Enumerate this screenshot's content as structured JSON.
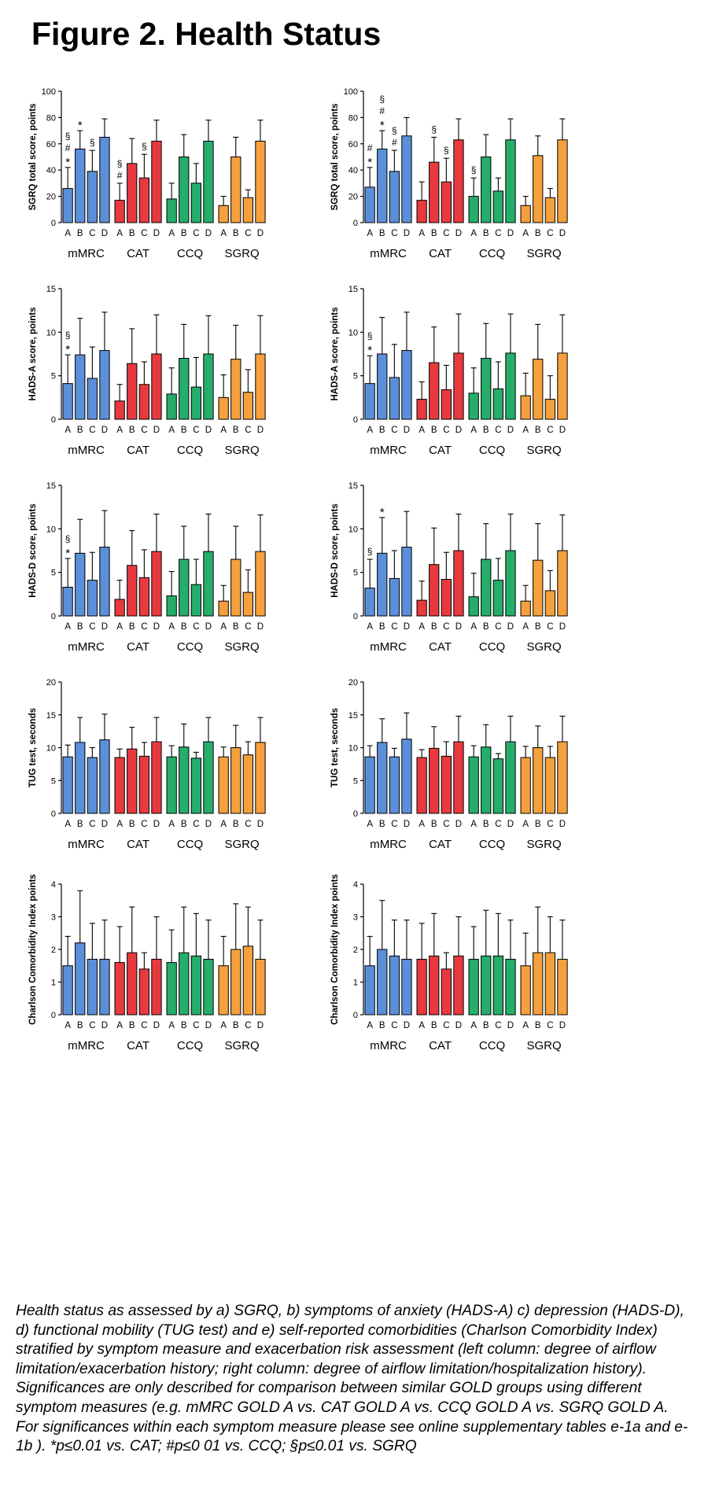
{
  "page": {
    "title": "Figure 2. Health Status",
    "caption": "Health status as assessed by a) SGRQ, b) symptoms of anxiety (HADS-A) c) depression (HADS-D), d) functional mobility (TUG test) and e) self-reported comorbidities (Charlson Comorbidity Index) stratified by symptom measure and exacerbation risk assessment (left column: degree of airflow limitation/exacerbation history; right column: degree of airflow limitation/hospitalization history). Significances are only described for comparison between similar GOLD groups using different symptom measures (e.g. mMRC GOLD A vs. CAT GOLD A vs. CCQ GOLD A vs. SGRQ GOLD A. For significances within each symptom measure please see online supplementary tables e-1a and e-1b ).  *p≤0.01 vs. CAT; #p≤0 01 vs. CCQ; §p≤0.01 vs. SGRQ"
  },
  "colors": {
    "mMRC": "#5b8fd8",
    "CAT": "#e8393f",
    "CCQ": "#25ad6a",
    "SGRQ": "#f5a03c"
  },
  "chart_data": [
    {
      "type": "bar",
      "column": "left",
      "ylabel": "SGRQ total score, points",
      "ylim": [
        0,
        100
      ],
      "yticks": [
        "0",
        "20",
        "40",
        "60",
        "80",
        "100"
      ],
      "groups": [
        "mMRC",
        "CAT",
        "CCQ",
        "SGRQ"
      ],
      "categories": [
        "A",
        "B",
        "C",
        "D"
      ],
      "values": [
        [
          26,
          56,
          39,
          65
        ],
        [
          17,
          45,
          34,
          62
        ],
        [
          18,
          50,
          30,
          62
        ],
        [
          13,
          50,
          19,
          62
        ]
      ],
      "errors": [
        [
          42,
          70,
          55,
          79
        ],
        [
          30,
          64,
          52,
          78
        ],
        [
          30,
          67,
          45,
          78
        ],
        [
          20,
          65,
          25,
          78
        ]
      ],
      "annotations": [
        [
          [
            "§",
            "#",
            "*"
          ],
          [
            "*"
          ],
          [
            "§"
          ],
          []
        ],
        [
          [
            "§",
            "#"
          ],
          [],
          [
            "§"
          ],
          []
        ],
        [
          [],
          [],
          [],
          []
        ],
        [
          [],
          [],
          [],
          []
        ]
      ]
    },
    {
      "type": "bar",
      "column": "right",
      "ylabel": "SGRQ total score, points",
      "ylim": [
        0,
        100
      ],
      "yticks": [
        "0",
        "20",
        "40",
        "60",
        "80",
        "100"
      ],
      "groups": [
        "mMRC",
        "CAT",
        "CCQ",
        "SGRQ"
      ],
      "categories": [
        "A",
        "B",
        "C",
        "D"
      ],
      "values": [
        [
          27,
          56,
          39,
          66
        ],
        [
          17,
          46,
          31,
          63
        ],
        [
          20,
          50,
          24,
          63
        ],
        [
          13,
          51,
          19,
          63
        ]
      ],
      "errors": [
        [
          42,
          70,
          55,
          80
        ],
        [
          31,
          65,
          49,
          79
        ],
        [
          34,
          67,
          34,
          79
        ],
        [
          20,
          66,
          26,
          79
        ]
      ],
      "annotations": [
        [
          [
            "#",
            "*"
          ],
          [
            "§",
            "#",
            "*"
          ],
          [
            "§",
            "#"
          ],
          []
        ],
        [
          [],
          [
            "§"
          ],
          [
            "§"
          ],
          []
        ],
        [
          [
            "§"
          ],
          [],
          [],
          []
        ],
        [
          [],
          [],
          [],
          []
        ]
      ]
    },
    {
      "type": "bar",
      "column": "left",
      "ylabel": "HADS-A score, points",
      "ylim": [
        0,
        15
      ],
      "yticks": [
        "0",
        "5",
        "10",
        "15"
      ],
      "groups": [
        "mMRC",
        "CAT",
        "CCQ",
        "SGRQ"
      ],
      "categories": [
        "A",
        "B",
        "C",
        "D"
      ],
      "values": [
        [
          4.1,
          7.4,
          4.7,
          7.9
        ],
        [
          2.1,
          6.4,
          4.0,
          7.5
        ],
        [
          2.9,
          7.0,
          3.7,
          7.5
        ],
        [
          2.5,
          6.9,
          3.1,
          7.5
        ]
      ],
      "errors": [
        [
          7.4,
          11.6,
          8.3,
          12.3
        ],
        [
          4.0,
          10.4,
          6.6,
          12.0
        ],
        [
          5.9,
          10.9,
          7.1,
          11.9
        ],
        [
          5.1,
          10.8,
          5.7,
          11.9
        ]
      ],
      "annotations": [
        [
          [
            "§",
            "*"
          ],
          [],
          [],
          []
        ],
        [
          [],
          [],
          [],
          []
        ],
        [
          [],
          [],
          [],
          []
        ],
        [
          [],
          [],
          [],
          []
        ]
      ]
    },
    {
      "type": "bar",
      "column": "right",
      "ylabel": "HADS-A score, points",
      "ylim": [
        0,
        15
      ],
      "yticks": [
        "0",
        "5",
        "10",
        "15"
      ],
      "groups": [
        "mMRC",
        "CAT",
        "CCQ",
        "SGRQ"
      ],
      "categories": [
        "A",
        "B",
        "C",
        "D"
      ],
      "values": [
        [
          4.1,
          7.5,
          4.8,
          7.9
        ],
        [
          2.3,
          6.5,
          3.4,
          7.6
        ],
        [
          3.0,
          7.0,
          3.5,
          7.6
        ],
        [
          2.7,
          6.9,
          2.3,
          7.6
        ]
      ],
      "errors": [
        [
          7.3,
          11.7,
          8.6,
          12.3
        ],
        [
          4.3,
          10.6,
          6.2,
          12.1
        ],
        [
          5.9,
          11.0,
          6.6,
          12.1
        ],
        [
          5.3,
          10.9,
          5.0,
          12.0
        ]
      ],
      "annotations": [
        [
          [
            "§",
            "*"
          ],
          [],
          [],
          []
        ],
        [
          [],
          [],
          [],
          []
        ],
        [
          [],
          [],
          [],
          []
        ],
        [
          [],
          [],
          [],
          []
        ]
      ]
    },
    {
      "type": "bar",
      "column": "left",
      "ylabel": "HADS-D score, points",
      "ylim": [
        0,
        15
      ],
      "yticks": [
        "0",
        "5",
        "10",
        "15"
      ],
      "groups": [
        "mMRC",
        "CAT",
        "CCQ",
        "SGRQ"
      ],
      "categories": [
        "A",
        "B",
        "C",
        "D"
      ],
      "values": [
        [
          3.3,
          7.2,
          4.1,
          7.9
        ],
        [
          1.9,
          5.8,
          4.4,
          7.4
        ],
        [
          2.3,
          6.5,
          3.6,
          7.4
        ],
        [
          1.7,
          6.5,
          2.7,
          7.4
        ]
      ],
      "errors": [
        [
          6.6,
          11.1,
          7.3,
          12.1
        ],
        [
          4.1,
          9.8,
          7.6,
          11.7
        ],
        [
          5.1,
          10.3,
          6.5,
          11.7
        ],
        [
          3.5,
          10.3,
          5.3,
          11.6
        ]
      ],
      "annotations": [
        [
          [
            "§",
            "*"
          ],
          [],
          [],
          []
        ],
        [
          [],
          [],
          [],
          []
        ],
        [
          [],
          [],
          [],
          []
        ],
        [
          [],
          [],
          [],
          []
        ]
      ]
    },
    {
      "type": "bar",
      "column": "right",
      "ylabel": "HADS-D score, points",
      "ylim": [
        0,
        15
      ],
      "yticks": [
        "0",
        "5",
        "10",
        "15"
      ],
      "groups": [
        "mMRC",
        "CAT",
        "CCQ",
        "SGRQ"
      ],
      "categories": [
        "A",
        "B",
        "C",
        "D"
      ],
      "values": [
        [
          3.2,
          7.2,
          4.3,
          7.9
        ],
        [
          1.8,
          5.9,
          4.2,
          7.5
        ],
        [
          2.2,
          6.5,
          4.1,
          7.5
        ],
        [
          1.7,
          6.4,
          2.9,
          7.5
        ]
      ],
      "errors": [
        [
          6.5,
          11.3,
          7.5,
          12.0
        ],
        [
          4.0,
          10.1,
          7.3,
          11.7
        ],
        [
          4.9,
          10.6,
          6.6,
          11.7
        ],
        [
          3.5,
          10.6,
          5.2,
          11.6
        ]
      ],
      "annotations": [
        [
          [
            "§"
          ],
          [
            "*"
          ],
          [],
          []
        ],
        [
          [],
          [],
          [],
          []
        ],
        [
          [],
          [],
          [],
          []
        ],
        [
          [],
          [],
          [],
          []
        ]
      ]
    },
    {
      "type": "bar",
      "column": "left",
      "ylabel": "TUG test, seconds",
      "ylim": [
        0,
        20
      ],
      "yticks": [
        "0",
        "5",
        "10",
        "15",
        "20"
      ],
      "groups": [
        "mMRC",
        "CAT",
        "CCQ",
        "SGRQ"
      ],
      "categories": [
        "A",
        "B",
        "C",
        "D"
      ],
      "values": [
        [
          8.6,
          10.8,
          8.5,
          11.2
        ],
        [
          8.5,
          9.8,
          8.7,
          10.9
        ],
        [
          8.6,
          10.1,
          8.4,
          10.9
        ],
        [
          8.6,
          10.0,
          8.9,
          10.8
        ]
      ],
      "errors": [
        [
          10.4,
          14.6,
          10.0,
          15.1
        ],
        [
          9.8,
          13.1,
          10.8,
          14.6
        ],
        [
          10.3,
          13.6,
          9.3,
          14.6
        ],
        [
          10.1,
          13.4,
          10.9,
          14.6
        ]
      ],
      "annotations": [
        [
          [],
          [],
          [],
          []
        ],
        [
          [],
          [],
          [],
          []
        ],
        [
          [],
          [],
          [],
          []
        ],
        [
          [],
          [],
          [],
          []
        ]
      ]
    },
    {
      "type": "bar",
      "column": "right",
      "ylabel": "TUG test, seconds",
      "ylim": [
        0,
        20
      ],
      "yticks": [
        "0",
        "5",
        "10",
        "15",
        "20"
      ],
      "groups": [
        "mMRC",
        "CAT",
        "CCQ",
        "SGRQ"
      ],
      "categories": [
        "A",
        "B",
        "C",
        "D"
      ],
      "values": [
        [
          8.6,
          10.8,
          8.6,
          11.3
        ],
        [
          8.5,
          9.9,
          8.7,
          10.9
        ],
        [
          8.6,
          10.1,
          8.3,
          10.9
        ],
        [
          8.5,
          10.0,
          8.5,
          10.9
        ]
      ],
      "errors": [
        [
          10.3,
          14.4,
          9.9,
          15.3
        ],
        [
          9.7,
          13.2,
          10.9,
          14.8
        ],
        [
          10.3,
          13.5,
          9.1,
          14.8
        ],
        [
          10.2,
          13.3,
          10.2,
          14.8
        ]
      ],
      "annotations": [
        [
          [],
          [],
          [],
          []
        ],
        [
          [],
          [],
          [],
          []
        ],
        [
          [],
          [],
          [],
          []
        ],
        [
          [],
          [],
          [],
          []
        ]
      ]
    },
    {
      "type": "bar",
      "column": "left",
      "ylabel": "Charlson Comorbidity Index points",
      "ylim": [
        0,
        4
      ],
      "yticks": [
        "0",
        "1",
        "2",
        "3",
        "4"
      ],
      "groups": [
        "mMRC",
        "CAT",
        "CCQ",
        "SGRQ"
      ],
      "categories": [
        "A",
        "B",
        "C",
        "D"
      ],
      "values": [
        [
          1.5,
          2.2,
          1.7,
          1.7
        ],
        [
          1.6,
          1.9,
          1.4,
          1.7
        ],
        [
          1.6,
          1.9,
          1.8,
          1.7
        ],
        [
          1.5,
          2.0,
          2.1,
          1.7
        ]
      ],
      "errors": [
        [
          2.4,
          3.8,
          2.8,
          2.9
        ],
        [
          2.7,
          3.3,
          1.9,
          3.0
        ],
        [
          2.6,
          3.3,
          3.1,
          2.9
        ],
        [
          2.4,
          3.4,
          3.3,
          2.9
        ]
      ],
      "annotations": [
        [
          [],
          [],
          [],
          []
        ],
        [
          [],
          [],
          [],
          []
        ],
        [
          [],
          [],
          [],
          []
        ],
        [
          [],
          [],
          [],
          []
        ]
      ]
    },
    {
      "type": "bar",
      "column": "right",
      "ylabel": "Charlson Comorbidity Index points",
      "ylim": [
        0,
        4
      ],
      "yticks": [
        "0",
        "1",
        "2",
        "3",
        "4"
      ],
      "groups": [
        "mMRC",
        "CAT",
        "CCQ",
        "SGRQ"
      ],
      "categories": [
        "A",
        "B",
        "C",
        "D"
      ],
      "values": [
        [
          1.5,
          2.0,
          1.8,
          1.7
        ],
        [
          1.7,
          1.8,
          1.4,
          1.8
        ],
        [
          1.7,
          1.8,
          1.8,
          1.7
        ],
        [
          1.5,
          1.9,
          1.9,
          1.7
        ]
      ],
      "errors": [
        [
          2.4,
          3.5,
          2.9,
          2.9
        ],
        [
          2.8,
          3.1,
          1.9,
          3.0
        ],
        [
          2.7,
          3.2,
          3.1,
          2.9
        ],
        [
          2.5,
          3.3,
          3.0,
          2.9
        ]
      ],
      "annotations": [
        [
          [],
          [],
          [],
          []
        ],
        [
          [],
          [],
          [],
          []
        ],
        [
          [],
          [],
          [],
          []
        ],
        [
          [],
          [],
          [],
          []
        ]
      ]
    }
  ]
}
